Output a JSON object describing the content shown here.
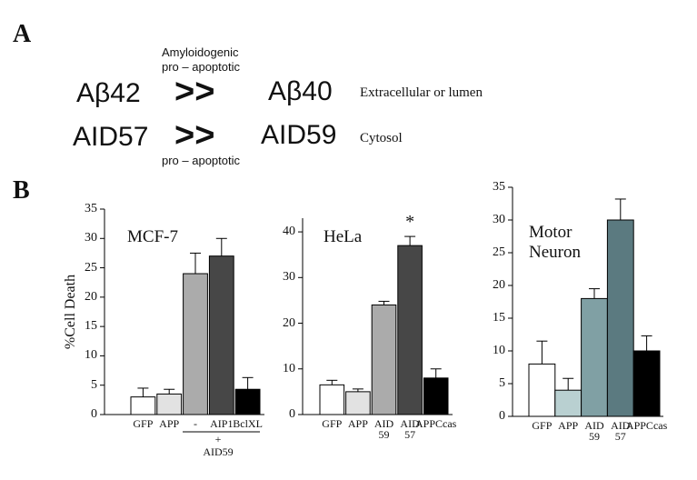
{
  "panel_a": {
    "label": "A",
    "top_note": [
      "Amyloidogenic",
      "pro – apoptotic"
    ],
    "rows": [
      {
        "left": "Aβ42",
        "relation": ">>",
        "right": "Aβ40",
        "location": "Extracellular or lumen"
      },
      {
        "left": "AID57",
        "relation": ">>",
        "right": "AID59",
        "location": "Cytosol"
      }
    ],
    "bottom_note": "pro – apoptotic"
  },
  "panel_b": {
    "label": "B"
  },
  "chart_data": [
    {
      "type": "bar",
      "title": "MCF-7",
      "ylabel": "%Cell Death",
      "categories": [
        "GFP",
        "APP",
        "-",
        "AIP1",
        "BclXL"
      ],
      "values": [
        3,
        3.5,
        24,
        27,
        4.3
      ],
      "errors": [
        1.5,
        0.8,
        3.5,
        3,
        2
      ],
      "colors": [
        "#ffffff",
        "#e2e2e2",
        "#ababab",
        "#474747",
        "#000000"
      ],
      "annotations": [
        "+",
        "AID59"
      ],
      "ylim": [
        0,
        35
      ],
      "yticks": [
        0,
        5,
        10,
        15,
        20,
        25,
        30,
        35
      ]
    },
    {
      "type": "bar",
      "title": "HeLa",
      "categories": [
        "GFP",
        "APP",
        "AID 59",
        "AID 57",
        "APPCcas"
      ],
      "values": [
        6.5,
        5,
        24,
        37,
        8
      ],
      "errors": [
        1,
        0.6,
        0.8,
        2,
        2
      ],
      "colors": [
        "#ffffff",
        "#e2e2e2",
        "#ababab",
        "#474747",
        "#000000"
      ],
      "annotations": [
        "*"
      ],
      "ylim": [
        0,
        43
      ],
      "yticks": [
        0,
        10,
        20,
        30,
        40
      ]
    },
    {
      "type": "bar",
      "title": "Motor Neuron",
      "categories": [
        "GFP",
        "APP",
        "AID 59",
        "AID 57",
        "APPCcas"
      ],
      "values": [
        8,
        4,
        18,
        30,
        10
      ],
      "errors": [
        3.5,
        1.8,
        1.5,
        3.2,
        2.3
      ],
      "colors": [
        "#ffffff",
        "#b9d0d1",
        "#80a0a4",
        "#5b7a80",
        "#000000"
      ],
      "ylim": [
        0,
        35
      ],
      "yticks": [
        0,
        5,
        10,
        15,
        20,
        25,
        30,
        35
      ]
    }
  ]
}
